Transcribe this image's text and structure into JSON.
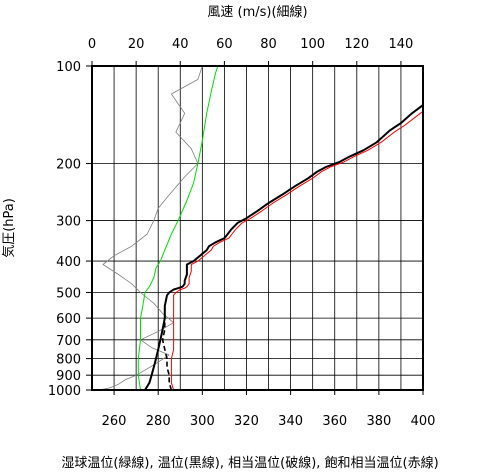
{
  "chart_data": {
    "type": "line",
    "top_xlabel": "風速 (m/s)(細線)",
    "bottom_xlabel": "湿球温位(緑線), 温位(黒線), 相当温位(破線), 飽和相当温位(赤線)",
    "ylabel": "気圧(hPa)",
    "y_scale": "log",
    "y_reversed": true,
    "ylim": [
      1000,
      100
    ],
    "grid": true,
    "y_ticks": [
      100,
      200,
      300,
      400,
      500,
      600,
      700,
      800,
      900,
      1000
    ],
    "top_x_ticks": [
      0,
      20,
      40,
      60,
      80,
      100,
      120,
      140
    ],
    "bottom_x_ticks": [
      260,
      280,
      300,
      320,
      340,
      360,
      380,
      400
    ],
    "top_xlim": [
      0,
      150
    ],
    "bottom_xlim": [
      250,
      400
    ],
    "colors": {
      "wind": "#808080",
      "wet_bulb": "#00dd00",
      "potential": "#000000",
      "saturated": "#ff0000",
      "grid": "#000000"
    },
    "series": [
      {
        "key": "wind",
        "axis": "top",
        "style": "thin",
        "points": [
          [
            3,
            1000
          ],
          [
            8,
            985
          ],
          [
            12,
            960
          ],
          [
            15,
            930
          ],
          [
            20,
            900
          ],
          [
            25,
            860
          ],
          [
            30,
            820
          ],
          [
            35,
            780
          ],
          [
            27,
            740
          ],
          [
            22,
            700
          ],
          [
            30,
            660
          ],
          [
            37,
            620
          ],
          [
            32,
            580
          ],
          [
            28,
            540
          ],
          [
            22,
            500
          ],
          [
            18,
            470
          ],
          [
            12,
            440
          ],
          [
            5,
            410
          ],
          [
            10,
            385
          ],
          [
            18,
            360
          ],
          [
            25,
            330
          ],
          [
            28,
            300
          ],
          [
            30,
            275
          ],
          [
            35,
            250
          ],
          [
            42,
            220
          ],
          [
            48,
            200
          ],
          [
            45,
            180
          ],
          [
            38,
            160
          ],
          [
            42,
            140
          ],
          [
            36,
            122
          ],
          [
            48,
            110
          ],
          [
            50,
            100
          ]
        ]
      },
      {
        "key": "wet_bulb",
        "axis": "bottom",
        "style": "thin",
        "points": [
          [
            272,
            1000
          ],
          [
            271,
            900
          ],
          [
            271,
            800
          ],
          [
            272,
            700
          ],
          [
            272,
            600
          ],
          [
            273,
            550
          ],
          [
            274,
            500
          ],
          [
            276,
            480
          ],
          [
            278,
            450
          ],
          [
            279,
            420
          ],
          [
            281,
            400
          ],
          [
            283,
            370
          ],
          [
            286,
            330
          ],
          [
            289,
            300
          ],
          [
            293,
            260
          ],
          [
            296,
            230
          ],
          [
            298,
            200
          ],
          [
            300,
            170
          ],
          [
            302,
            140
          ],
          [
            304,
            120
          ],
          [
            306,
            105
          ],
          [
            307,
            100
          ]
        ]
      },
      {
        "key": "potential",
        "axis": "bottom",
        "style": "thick",
        "points": [
          [
            274,
            1000
          ],
          [
            276,
            950
          ],
          [
            277,
            900
          ],
          [
            278,
            850
          ],
          [
            279,
            800
          ],
          [
            280,
            750
          ],
          [
            281,
            700
          ],
          [
            282,
            650
          ],
          [
            283,
            600
          ],
          [
            283,
            550
          ],
          [
            284,
            510
          ],
          [
            285,
            500
          ],
          [
            287,
            490
          ],
          [
            289,
            485
          ],
          [
            291,
            480
          ],
          [
            292,
            470
          ],
          [
            292,
            460
          ],
          [
            293,
            440
          ],
          [
            293,
            410
          ],
          [
            296,
            400
          ],
          [
            298,
            390
          ],
          [
            300,
            380
          ],
          [
            302,
            370
          ],
          [
            303,
            360
          ],
          [
            306,
            350
          ],
          [
            310,
            340
          ],
          [
            313,
            320
          ],
          [
            316,
            305
          ],
          [
            320,
            295
          ],
          [
            325,
            280
          ],
          [
            330,
            265
          ],
          [
            336,
            250
          ],
          [
            342,
            235
          ],
          [
            348,
            222
          ],
          [
            352,
            212
          ],
          [
            356,
            205
          ],
          [
            362,
            198
          ],
          [
            367,
            190
          ],
          [
            373,
            182
          ],
          [
            379,
            172
          ],
          [
            385,
            158
          ],
          [
            390,
            150
          ],
          [
            395,
            140
          ],
          [
            400,
            132
          ]
        ]
      },
      {
        "key": "equivalent",
        "axis": "bottom",
        "style": "dashed",
        "points": [
          [
            286,
            1000
          ],
          [
            285,
            950
          ],
          [
            285,
            900
          ],
          [
            284,
            850
          ],
          [
            284,
            800
          ],
          [
            283,
            750
          ],
          [
            282,
            700
          ],
          [
            283,
            650
          ],
          [
            283,
            600
          ],
          [
            283,
            550
          ],
          [
            284,
            510
          ]
        ]
      },
      {
        "key": "saturated",
        "axis": "bottom",
        "style": "thin",
        "points": [
          [
            287,
            1000
          ],
          [
            286,
            950
          ],
          [
            286,
            900
          ],
          [
            286,
            850
          ],
          [
            286,
            800
          ],
          [
            287,
            750
          ],
          [
            287,
            700
          ],
          [
            287,
            650
          ],
          [
            287,
            600
          ],
          [
            287,
            550
          ],
          [
            287,
            510
          ],
          [
            288,
            500
          ],
          [
            290,
            490
          ],
          [
            292,
            485
          ],
          [
            293,
            480
          ],
          [
            294,
            470
          ],
          [
            294,
            450
          ],
          [
            295,
            430
          ],
          [
            295,
            410
          ],
          [
            298,
            400
          ],
          [
            300,
            390
          ],
          [
            302,
            380
          ],
          [
            304,
            370
          ],
          [
            305,
            360
          ],
          [
            308,
            350
          ],
          [
            312,
            340
          ],
          [
            315,
            320
          ],
          [
            318,
            305
          ],
          [
            322,
            295
          ],
          [
            327,
            280
          ],
          [
            332,
            265
          ],
          [
            338,
            250
          ],
          [
            344,
            235
          ],
          [
            350,
            222
          ],
          [
            354,
            212
          ],
          [
            358,
            205
          ],
          [
            364,
            198
          ],
          [
            369,
            190
          ],
          [
            375,
            182
          ],
          [
            381,
            172
          ],
          [
            387,
            160
          ],
          [
            392,
            152
          ],
          [
            397,
            143
          ],
          [
            400,
            138
          ]
        ]
      }
    ]
  }
}
